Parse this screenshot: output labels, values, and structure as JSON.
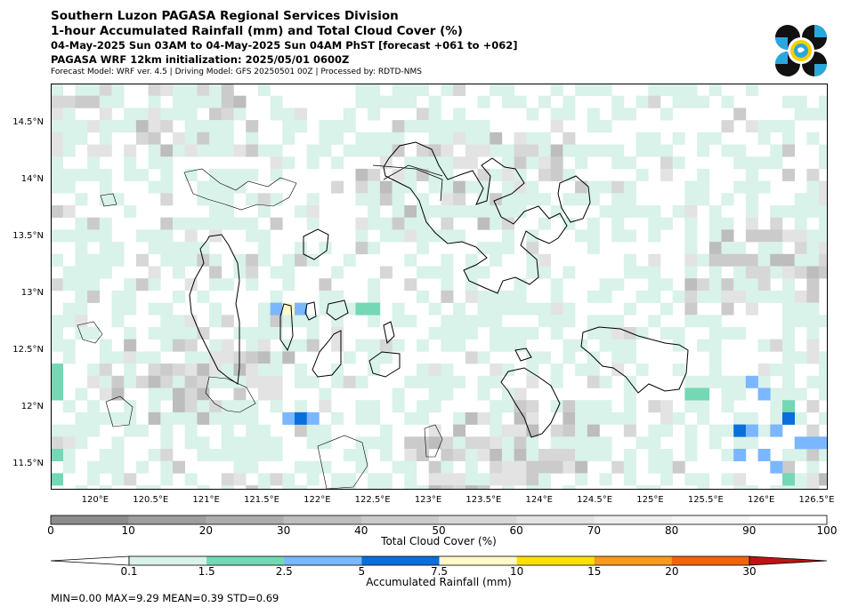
{
  "header": {
    "line1": "Southern Luzon PAGASA Regional Services Division",
    "line2": "1-hour Accumulated Rainfall (mm) and Total Cloud Cover (%)",
    "line3": "04-May-2025 Sun 03AM to 04-May-2025 Sun 04AM PhST [forecast +061 to +062]",
    "line4": "PAGASA WRF 12km initialization: 2025/05/01 0600Z",
    "line5": "Forecast Model: WRF ver. 4.5 | Driving Model: GFS 20250501 00Z | Processed by: RDTD-NMS"
  },
  "map": {
    "extent": {
      "lon": [
        119.6,
        126.6
      ],
      "lat": [
        11.28,
        14.85
      ]
    },
    "lon_ticks": [
      "120°E",
      "120.5°E",
      "121°E",
      "121.5°E",
      "122°E",
      "122.5°E",
      "123°E",
      "123.5°E",
      "124°E",
      "124.5°E",
      "125°E",
      "125.5°E",
      "126°E",
      "126.5°E"
    ],
    "lat_ticks": [
      "14.5°N",
      "14°N",
      "13.5°N",
      "13°N",
      "12.5°N",
      "12°N",
      "11.5°N"
    ],
    "colors": {
      "ocean_bg": "#ffffff",
      "rain_min": "#d9f2ea",
      "coast": "#000000"
    }
  },
  "cloud_colorbar": {
    "ticks": [
      "0",
      "10",
      "20",
      "30",
      "40",
      "50",
      "60",
      "70",
      "80",
      "90",
      "100"
    ],
    "label": "Total Cloud Cover (%)",
    "colors": [
      "#8c8c8c",
      "#9e9e9e",
      "#adadad",
      "#bdbdbd",
      "#cbcbcb",
      "#d7d7d7",
      "#e3e3e3",
      "#eeeeee",
      "#f6f6f6",
      "#ffffff"
    ]
  },
  "rain_colorbar": {
    "ticks": [
      "0.1",
      "1.5",
      "2.5",
      "5",
      "7.5",
      "10",
      "15",
      "20",
      "30"
    ],
    "label": "Accumulated Rainfall (mm)",
    "colors": [
      "#d9f2ea",
      "#74d8b4",
      "#7ab7ff",
      "#0a6fdc",
      "#fffac8",
      "#ffe100",
      "#f59b1e",
      "#f0640a",
      "#be1414"
    ]
  },
  "stats": "MIN=0.00   MAX=9.29   MEAN=0.39   STD=0.69"
}
